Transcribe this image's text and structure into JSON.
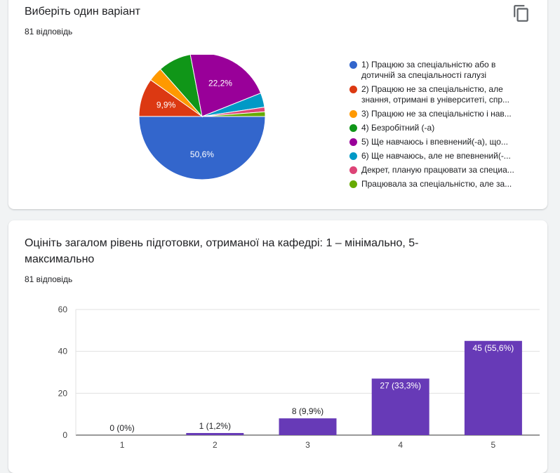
{
  "question1": {
    "title": "Виберіть один варіант",
    "responses": "81 відповідь",
    "copy_icon": "copy-icon"
  },
  "question2": {
    "title_line1": "Оцініть загалом рівень підготовки, отриманої на кафедрі: 1 – мінімально, 5-",
    "title_line2": "максимально",
    "responses": "81 відповідь"
  },
  "chart_data": [
    {
      "type": "pie",
      "categories": [
        "1) Працюю за спеціальністю або в дотичній за спеціальності галузі",
        "2) Працюю не за спеціальністю, але знання, отримані в університеті, спр...",
        "3) Працюю не за спеціальністю і нав...",
        "4) Безробітний (-а)",
        "5) Ще навчаюсь і впевнений(-а), що...",
        "6) Ще навчаюсь, але не впевнений(-...",
        "Декрет, планую працювати за специа...",
        "Працювала за спеціальністю, але за..."
      ],
      "values": [
        50.6,
        9.9,
        3.7,
        8.6,
        22.2,
        3.7,
        1.2,
        1.2
      ],
      "slice_labels": [
        "50,6%",
        "9,9%",
        "",
        "",
        "22,2%",
        "",
        "",
        ""
      ],
      "colors": [
        "#3366cc",
        "#dc3912",
        "#ff9900",
        "#109618",
        "#990099",
        "#0099c6",
        "#dd4477",
        "#66aa00"
      ],
      "legend_position": "right"
    },
    {
      "type": "bar",
      "categories": [
        "1",
        "2",
        "3",
        "4",
        "5"
      ],
      "values": [
        0,
        1,
        8,
        27,
        45
      ],
      "value_labels": [
        "0 (0%)",
        "1 (1,2%)",
        "8 (9,9%)",
        "27 (33,3%)",
        "45 (55,6%)"
      ],
      "ylim": [
        0,
        60
      ],
      "yticks": [
        "0",
        "20",
        "40",
        "60"
      ],
      "color": "#673ab7",
      "grid": true
    }
  ]
}
